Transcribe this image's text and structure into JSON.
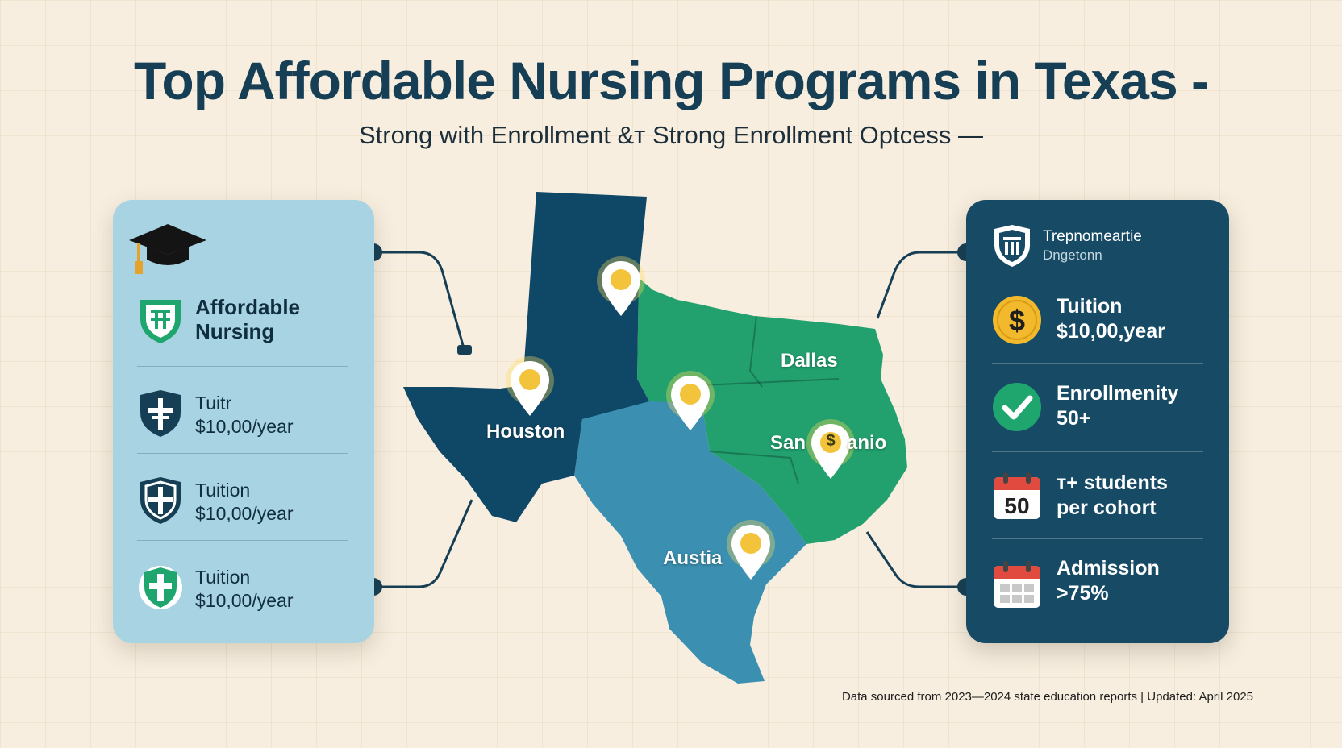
{
  "header": {
    "title": "Top Affordable Nursing Programs in Texas -",
    "subtitle": "Strong with Enrollment &ᴛ Strong Enrollment Optcess —"
  },
  "left_panel": {
    "cap_icon": "graduation-cap-icon",
    "heading_line1": "Affordable",
    "heading_line2": "Nursing",
    "heading_icon": "nursing-shield-icon",
    "items": [
      {
        "line1": "Tuitr",
        "line2": "$10,00/year",
        "icon": "cross-shield-icon"
      },
      {
        "line1": "Tuition",
        "line2": "$10,00/year",
        "icon": "cross-shield-icon"
      },
      {
        "line1": "Tuition",
        "line2": "$10,00/year",
        "icon": "medical-shield-icon"
      }
    ],
    "colors": {
      "panel": "#a8d3e3",
      "icon": "#163f56",
      "accent": "#1fa56e"
    }
  },
  "right_panel": {
    "header_line1": "Trepnomeartie",
    "header_line2": "Dngetonn",
    "header_icon": "institution-shield-icon",
    "items": [
      {
        "line1": "Tuition",
        "line2": "$10,00,year",
        "icon": "dollar-coin-icon"
      },
      {
        "line1": "Enrollmenity",
        "line2": "50+",
        "icon": "checkmark-icon"
      },
      {
        "line1": "т+ students",
        "line2": "per cohort",
        "icon": "calendar-50-icon",
        "badge": "50"
      },
      {
        "line1": "Admission",
        "line2": ">75%",
        "icon": "calendar-grid-icon"
      }
    ],
    "colors": {
      "panel": "#164a65",
      "coin": "#f2b92c",
      "check": "#1fa56e",
      "calendar": "#e04a3f"
    }
  },
  "map": {
    "cities": [
      {
        "name": "Dallas",
        "id": "dallas"
      },
      {
        "name": "Houston",
        "id": "houston"
      },
      {
        "name": "San",
        "id": "san"
      },
      {
        "name": "anio",
        "id": "anio"
      },
      {
        "name": "Austia",
        "id": "austia"
      }
    ],
    "pin_badge": "$",
    "colors": {
      "panhandle": "#0f4766",
      "east": "#22a06e",
      "south": "#3b8fb0",
      "pin": "#f3c43b"
    }
  },
  "footer": {
    "source": "Data sourced from 2023—2024 state education reports | Updated: April 2025"
  }
}
